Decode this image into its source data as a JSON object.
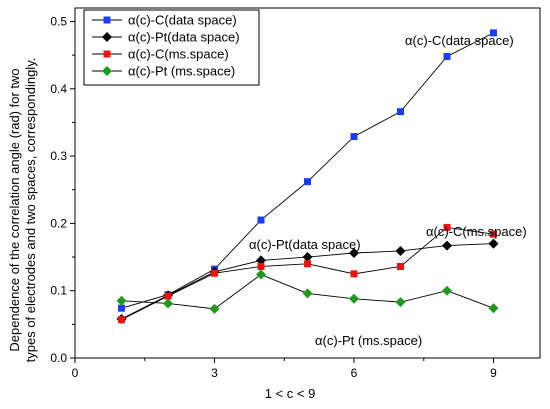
{
  "chart_data": {
    "type": "line",
    "xlabel": "1 < c < 9",
    "ylabel_lines": [
      "Dependence of the correlation angle (rad) for two",
      "types of electrodes and two spaces, correspondingly."
    ],
    "xlim": [
      0,
      10
    ],
    "ylim": [
      0,
      0.52
    ],
    "x_ticks": [
      0,
      3,
      6,
      9
    ],
    "y_ticks": [
      0.0,
      0.1,
      0.2,
      0.3,
      0.4,
      0.5
    ],
    "x_tick_labels": [
      "0",
      "3",
      "6",
      "9"
    ],
    "y_tick_labels": [
      "0.0",
      "0.1",
      "0.2",
      "0.3",
      "0.4",
      "0.5"
    ],
    "grid": false,
    "legend_position": "top-left",
    "series": [
      {
        "name": "α(c)-C(data space)",
        "marker": "square",
        "color": "#1a3cff",
        "x": [
          1,
          2,
          3,
          4,
          5,
          6,
          7,
          8,
          9
        ],
        "y": [
          0.074,
          0.094,
          0.132,
          0.205,
          0.262,
          0.329,
          0.366,
          0.448,
          0.483
        ]
      },
      {
        "name": "α(c)-Pt(data space)",
        "marker": "diamond",
        "color": "#000000",
        "x": [
          1,
          2,
          3,
          4,
          5,
          6,
          7,
          8,
          9
        ],
        "y": [
          0.058,
          0.093,
          0.128,
          0.145,
          0.15,
          0.156,
          0.159,
          0.167,
          0.17
        ]
      },
      {
        "name": "α(c)-C(ms.space)",
        "marker": "square",
        "color": "#ee1111",
        "x": [
          1,
          2,
          3,
          4,
          5,
          6,
          7,
          8,
          9
        ],
        "y": [
          0.057,
          0.092,
          0.126,
          0.136,
          0.14,
          0.125,
          0.136,
          0.194,
          0.184
        ]
      },
      {
        "name": "α(c)-Pt (ms.space)",
        "marker": "diamond",
        "color": "#1f9a1f",
        "x": [
          1,
          2,
          3,
          4,
          5,
          6,
          7,
          8,
          9
        ],
        "y": [
          0.085,
          0.081,
          0.073,
          0.124,
          0.096,
          0.088,
          0.083,
          0.1,
          0.074
        ]
      }
    ],
    "annotations": [
      {
        "text": "α(c)-C(data space)",
        "series_index": 0
      },
      {
        "text": "α(c)-Pt(data space)",
        "series_index": 1
      },
      {
        "text": "α(c)-C(ms.space)",
        "series_index": 2
      },
      {
        "text": "α(c)-Pt (ms.space)",
        "series_index": 3
      }
    ]
  }
}
